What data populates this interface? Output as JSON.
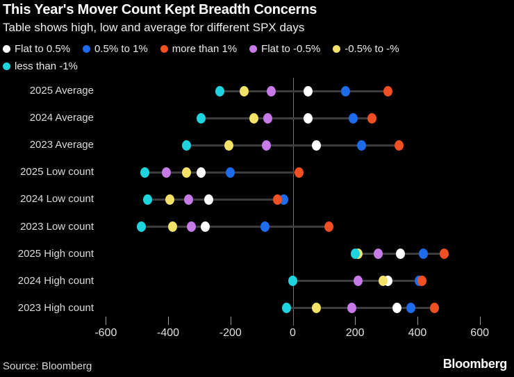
{
  "footer": {
    "source": "Source: Bloomberg",
    "brand": "Bloomberg"
  },
  "chart_data": {
    "type": "scatter",
    "title": "This Year's Mover Count Kept Breadth Concerns",
    "subtitle": "Table shows high, low and average for different SPX days",
    "xlabel": "",
    "ylabel": "",
    "x_ticks": [
      -600,
      -400,
      -200,
      0,
      200,
      400,
      600
    ],
    "xlim": [
      -700,
      710
    ],
    "grid": false,
    "legend_position": "top",
    "legend": [
      "Flat to 0.5%",
      "0.5% to 1%",
      "more than 1%",
      "Flat to -0.5%",
      "-0.5% to -%",
      "less than -1%"
    ],
    "series_colors": {
      "Flat to 0.5%": "#ffffff",
      "0.5% to 1%": "#1e6ceb",
      "more than 1%": "#f04e23",
      "Flat to -0.5%": "#c77be8",
      "-0.5% to -%": "#f4e269",
      "less than -1%": "#1fd3df"
    },
    "rows": [
      {
        "label": "2025 Average",
        "dots": [
          {
            "series": "less than -1%",
            "value": -235
          },
          {
            "series": "-0.5% to -%",
            "value": -155
          },
          {
            "series": "Flat to -0.5%",
            "value": -70
          },
          {
            "series": "Flat to 0.5%",
            "value": 50
          },
          {
            "series": "0.5% to 1%",
            "value": 170
          },
          {
            "series": "more than 1%",
            "value": 305
          }
        ]
      },
      {
        "label": "2024 Average",
        "dots": [
          {
            "series": "less than -1%",
            "value": -295
          },
          {
            "series": "-0.5% to -%",
            "value": -125
          },
          {
            "series": "Flat to -0.5%",
            "value": -80
          },
          {
            "series": "Flat to 0.5%",
            "value": 50
          },
          {
            "series": "0.5% to 1%",
            "value": 195
          },
          {
            "series": "more than 1%",
            "value": 255
          }
        ]
      },
      {
        "label": "2023 Average",
        "dots": [
          {
            "series": "less than -1%",
            "value": -340
          },
          {
            "series": "-0.5% to -%",
            "value": -205
          },
          {
            "series": "Flat to -0.5%",
            "value": -85
          },
          {
            "series": "Flat to 0.5%",
            "value": 75
          },
          {
            "series": "0.5% to 1%",
            "value": 220
          },
          {
            "series": "more than 1%",
            "value": 340
          }
        ]
      },
      {
        "label": "2025 Low count",
        "dots": [
          {
            "series": "less than -1%",
            "value": -475
          },
          {
            "series": "Flat to -0.5%",
            "value": -405
          },
          {
            "series": "-0.5% to -%",
            "value": -340
          },
          {
            "series": "Flat to 0.5%",
            "value": -295
          },
          {
            "series": "0.5% to 1%",
            "value": -200
          },
          {
            "series": "more than 1%",
            "value": 20
          }
        ]
      },
      {
        "label": "2024 Low count",
        "dots": [
          {
            "series": "less than -1%",
            "value": -465
          },
          {
            "series": "-0.5% to -%",
            "value": -395
          },
          {
            "series": "Flat to -0.5%",
            "value": -335
          },
          {
            "series": "Flat to 0.5%",
            "value": -270
          },
          {
            "series": "0.5% to 1%",
            "value": -30
          },
          {
            "series": "more than 1%",
            "value": -50
          }
        ]
      },
      {
        "label": "2023 Low count",
        "dots": [
          {
            "series": "less than -1%",
            "value": -485
          },
          {
            "series": "-0.5% to -%",
            "value": -385
          },
          {
            "series": "Flat to -0.5%",
            "value": -325
          },
          {
            "series": "Flat to 0.5%",
            "value": -280
          },
          {
            "series": "0.5% to 1%",
            "value": -90
          },
          {
            "series": "more than 1%",
            "value": 115
          }
        ]
      },
      {
        "label": "2025 High count",
        "dots": [
          {
            "series": "-0.5% to -%",
            "value": 210
          },
          {
            "series": "less than -1%",
            "value": 200
          },
          {
            "series": "Flat to -0.5%",
            "value": 275
          },
          {
            "series": "Flat to 0.5%",
            "value": 345
          },
          {
            "series": "0.5% to 1%",
            "value": 420
          },
          {
            "series": "more than 1%",
            "value": 485
          }
        ]
      },
      {
        "label": "2024 High count",
        "dots": [
          {
            "series": "less than -1%",
            "value": 0
          },
          {
            "series": "Flat to -0.5%",
            "value": 210
          },
          {
            "series": "Flat to 0.5%",
            "value": 305
          },
          {
            "series": "-0.5% to -%",
            "value": 290
          },
          {
            "series": "0.5% to 1%",
            "value": 405
          },
          {
            "series": "more than 1%",
            "value": 415
          }
        ]
      },
      {
        "label": "2023 High count",
        "dots": [
          {
            "series": "less than -1%",
            "value": -20
          },
          {
            "series": "-0.5% to -%",
            "value": 75
          },
          {
            "series": "Flat to -0.5%",
            "value": 190
          },
          {
            "series": "Flat to 0.5%",
            "value": 335
          },
          {
            "series": "0.5% to 1%",
            "value": 380
          },
          {
            "series": "more than 1%",
            "value": 455
          }
        ]
      }
    ]
  }
}
